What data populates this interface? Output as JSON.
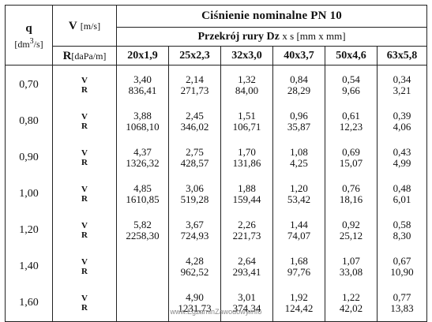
{
  "header": {
    "q_label": "q",
    "q_unit_pre": "[dm",
    "q_unit_sup": "3",
    "q_unit_post": "/s]",
    "v_label": "V",
    "v_unit": "[m/s]",
    "r_label": "R",
    "r_unit": "[daPa/m]",
    "title": "Ciśnienie nominalne PN 10",
    "subtitle_bold": "Przekrój rury Dz",
    "subtitle_norm": "x s  [mm x mm]",
    "dims": [
      "20x1,9",
      "25x2,3",
      "32x3,0",
      "40x3,7",
      "50x4,6",
      "63x5,8"
    ]
  },
  "rows": [
    {
      "q": "0,70",
      "v": "V",
      "r": "R",
      "cells": [
        [
          "3,40",
          "836,41"
        ],
        [
          "2,14",
          "271,73"
        ],
        [
          "1,32",
          "84,00"
        ],
        [
          "0,84",
          "28,29"
        ],
        [
          "0,54",
          "9,66"
        ],
        [
          "0,34",
          "3,21"
        ]
      ]
    },
    {
      "q": "0,80",
      "v": "V",
      "r": "R",
      "cells": [
        [
          "3,88",
          "1068,10"
        ],
        [
          "2,45",
          "346,02"
        ],
        [
          "1,51",
          "106,71"
        ],
        [
          "0,96",
          "35,87"
        ],
        [
          "0,61",
          "12,23"
        ],
        [
          "0,39",
          "4,06"
        ]
      ]
    },
    {
      "q": "0,90",
      "v": "V",
      "r": "R",
      "cells": [
        [
          "4,37",
          "1326,32"
        ],
        [
          "2,75",
          "428,57"
        ],
        [
          "1,70",
          "131,86"
        ],
        [
          "1,08",
          "4,25"
        ],
        [
          "0,69",
          "15,07"
        ],
        [
          "0,43",
          "4,99"
        ]
      ]
    },
    {
      "q": "1,00",
      "v": "V",
      "r": "R",
      "cells": [
        [
          "4,85",
          "1610,85"
        ],
        [
          "3,06",
          "519,28"
        ],
        [
          "1,88",
          "159,44"
        ],
        [
          "1,20",
          "53,42"
        ],
        [
          "0,76",
          "18,16"
        ],
        [
          "0,48",
          "6,01"
        ]
      ]
    },
    {
      "q": "1,20",
      "v": "V",
      "r": "R",
      "cells": [
        [
          "5,82",
          "2258,30"
        ],
        [
          "3,67",
          "724,93"
        ],
        [
          "2,26",
          "221,73"
        ],
        [
          "1,44",
          "74,07"
        ],
        [
          "0,92",
          "25,12"
        ],
        [
          "0,58",
          "8,30"
        ]
      ]
    },
    {
      "q": "1,40",
      "v": "V",
      "r": "R",
      "cells": [
        [
          "",
          ""
        ],
        [
          "4,28",
          "962,52"
        ],
        [
          "2,64",
          "293,41"
        ],
        [
          "1,68",
          "97,76"
        ],
        [
          "1,07",
          "33,08"
        ],
        [
          "0,67",
          "10,90"
        ]
      ]
    },
    {
      "q": "1,60",
      "v": "V",
      "r": "R",
      "cells": [
        [
          "",
          ""
        ],
        [
          "4,90",
          "1231,73"
        ],
        [
          "3,01",
          "374,34"
        ],
        [
          "1,92",
          "124,42"
        ],
        [
          "1,22",
          "42,02"
        ],
        [
          "0,77",
          "13,83"
        ]
      ]
    }
  ],
  "footer": "www.EgzaminZawodowy.info"
}
